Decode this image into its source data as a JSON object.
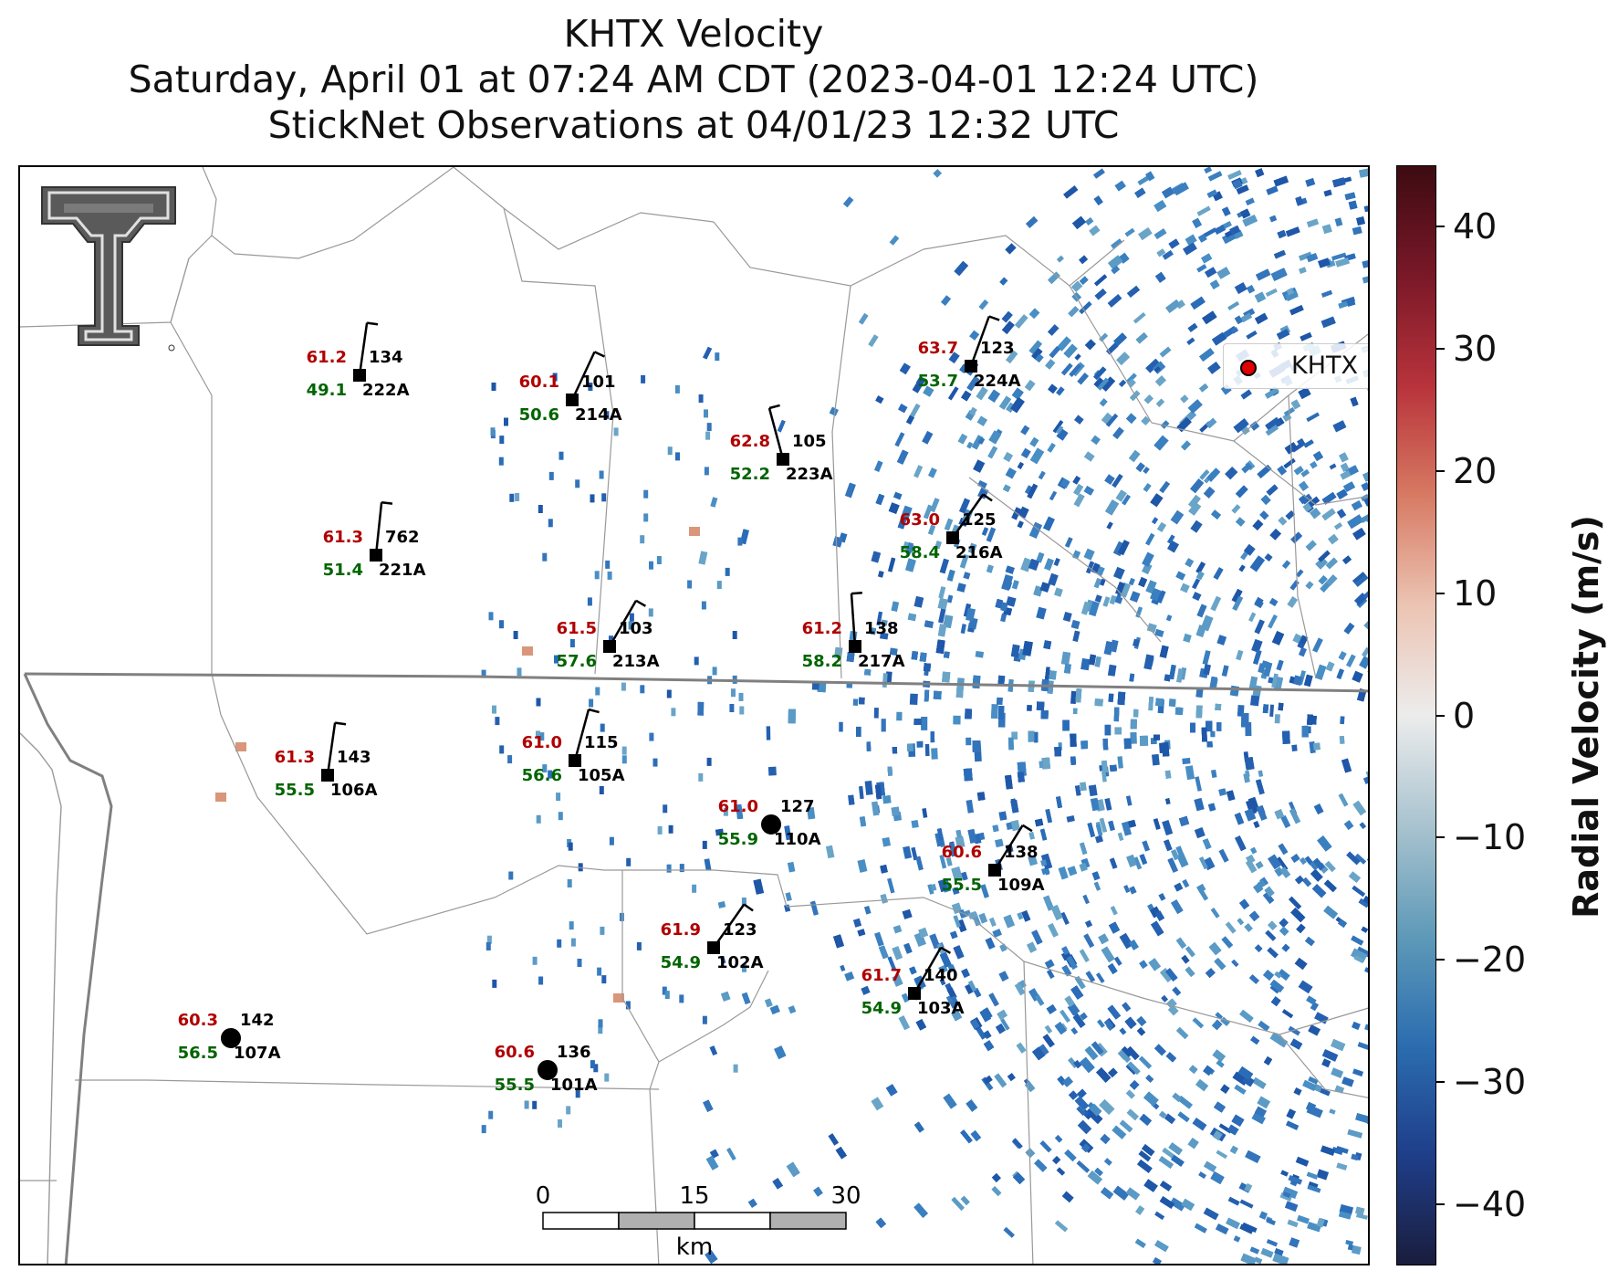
{
  "title": {
    "line1": "KHTX Velocity",
    "line2": "Saturday, April 01 at 07:24 AM CDT (2023-04-01 12:24 UTC)",
    "line3": "StickNet Observations at 04/01/23 12:32 UTC"
  },
  "legend": {
    "label": "KHTX",
    "marker_color": "#e00000"
  },
  "colorbar": {
    "label": "Radial Velocity (m/s)",
    "ticks": [
      "40",
      "30",
      "20",
      "10",
      "0",
      "−10",
      "−20",
      "−30",
      "−40"
    ],
    "range": [
      -45,
      45
    ]
  },
  "scalebar": {
    "ticks": [
      "0",
      "15",
      "30"
    ],
    "unit": "km"
  },
  "logo": "texas-tech-double-t-logo",
  "stations": [
    {
      "id": "222A",
      "temp": "61.2",
      "dew": "49.1",
      "pres": "134",
      "type": "barb"
    },
    {
      "id": "214A",
      "temp": "60.1",
      "dew": "50.6",
      "pres": "101",
      "type": "barb"
    },
    {
      "id": "224A",
      "temp": "63.7",
      "dew": "53.7",
      "pres": "123",
      "type": "barb"
    },
    {
      "id": "223A",
      "temp": "62.8",
      "dew": "52.2",
      "pres": "105",
      "type": "barb"
    },
    {
      "id": "221A",
      "temp": "61.3",
      "dew": "51.4",
      "pres": "762",
      "type": "barb"
    },
    {
      "id": "216A",
      "temp": "63.0",
      "dew": "58.4",
      "pres": "125",
      "type": "barb"
    },
    {
      "id": "213A",
      "temp": "61.5",
      "dew": "57.6",
      "pres": "103",
      "type": "barb"
    },
    {
      "id": "217A",
      "temp": "61.2",
      "dew": "58.2",
      "pres": "138",
      "type": "barb"
    },
    {
      "id": "106A",
      "temp": "61.3",
      "dew": "55.5",
      "pres": "143",
      "type": "barb"
    },
    {
      "id": "105A",
      "temp": "61.0",
      "dew": "56.6",
      "pres": "115",
      "type": "barb"
    },
    {
      "id": "110A",
      "temp": "61.0",
      "dew": "55.9",
      "pres": "127",
      "type": "calm"
    },
    {
      "id": "109A",
      "temp": "60.6",
      "dew": "55.5",
      "pres": "138",
      "type": "barb"
    },
    {
      "id": "102A",
      "temp": "61.9",
      "dew": "54.9",
      "pres": "123",
      "type": "barb"
    },
    {
      "id": "103A",
      "temp": "61.7",
      "dew": "54.9",
      "pres": "140",
      "type": "barb"
    },
    {
      "id": "107A",
      "temp": "60.3",
      "dew": "56.5",
      "pres": "142",
      "type": "calm"
    },
    {
      "id": "101A",
      "temp": "60.6",
      "dew": "55.5",
      "pres": "136",
      "type": "calm"
    }
  ]
}
